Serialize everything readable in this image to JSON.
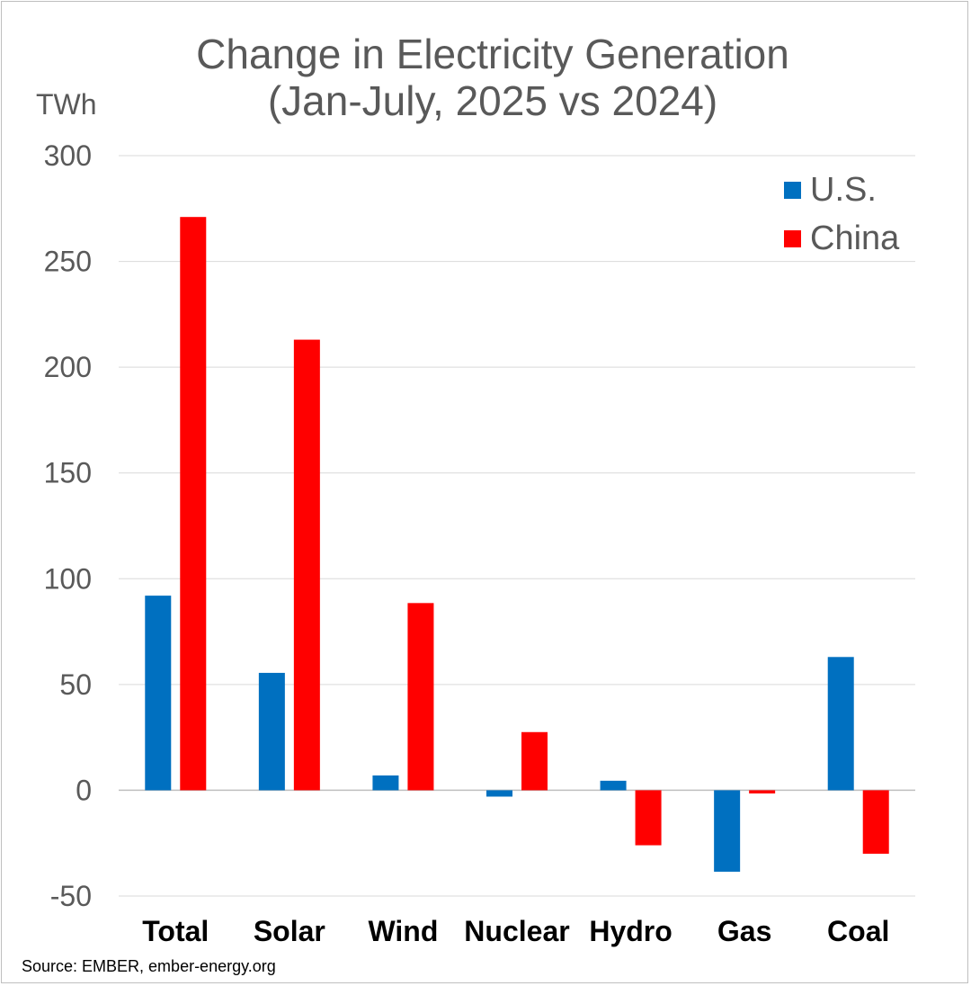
{
  "chart_data": {
    "type": "bar",
    "title_lines": [
      "Change in Electricity Generation",
      "(Jan-July, 2025 vs 2024)"
    ],
    "ylabel": "TWh",
    "xlabel": "",
    "ylim": [
      -50,
      300
    ],
    "yticks": [
      300,
      250,
      200,
      150,
      100,
      50,
      0,
      -50
    ],
    "grid": true,
    "legend_position": "top-right",
    "categories": [
      "Total",
      "Solar",
      "Wind",
      "Nuclear",
      "Hydro",
      "Gas",
      "Coal"
    ],
    "series": [
      {
        "name": "U.S.",
        "color": "#0070c0",
        "values": [
          92,
          55.5,
          7,
          -3,
          4.5,
          -38.5,
          63
        ]
      },
      {
        "name": "China",
        "color": "#ff0000",
        "values": [
          271,
          213,
          88.5,
          27.5,
          -26,
          -1.5,
          -30
        ]
      }
    ],
    "source": "Source: EMBER, ember-energy.org"
  }
}
